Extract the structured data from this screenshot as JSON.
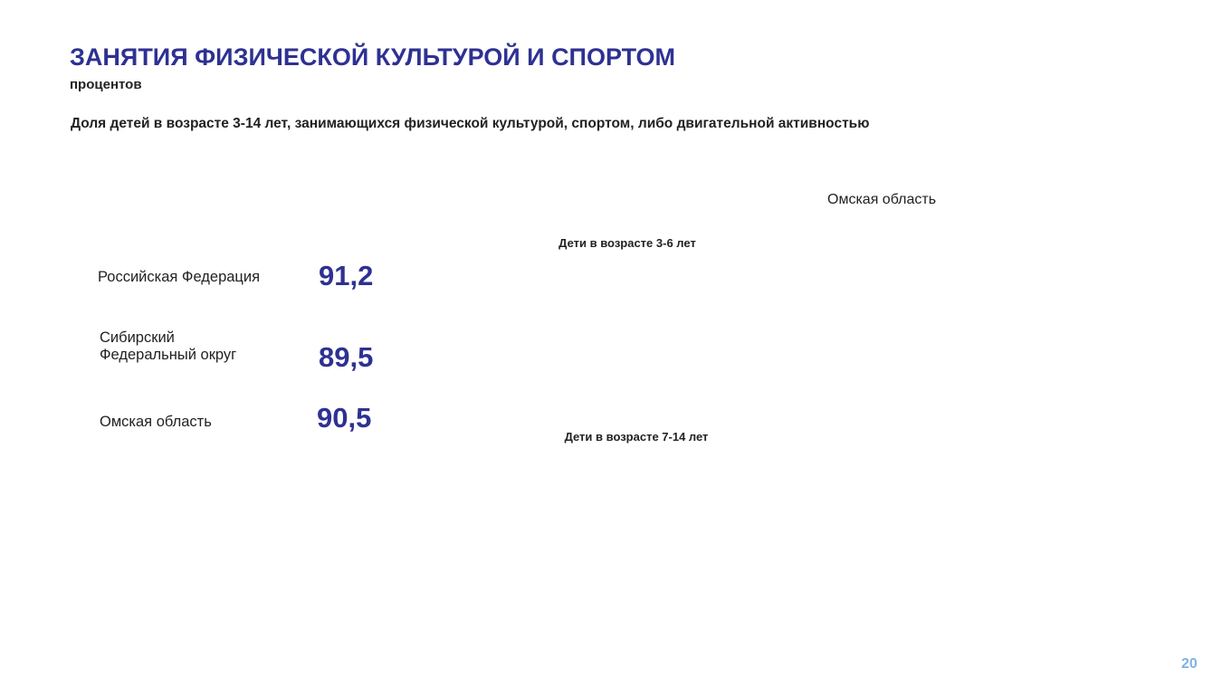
{
  "header": {
    "title": "ЗАНЯТИЯ ФИЗИЧЕСКОЙ КУЛЬТУРОЙ И СПОРТОМ",
    "subtitle": "процентов"
  },
  "heading": "Доля детей в возрасте 3-14 лет, занимающихся физической культурой, спортом, либо двигательной активностью",
  "legend": "Омская область",
  "groups": [
    "Дети в возрасте 3-6 лет",
    "Дети в возрасте 7-14 лет"
  ],
  "regions": [
    {
      "name": "Российская Федерация",
      "value": "91,2"
    },
    {
      "name": "Сибирский\nФедеральный округ",
      "value": "89,5"
    },
    {
      "name": "Омская область",
      "value": "90,5"
    }
  ],
  "page_number": "20"
}
